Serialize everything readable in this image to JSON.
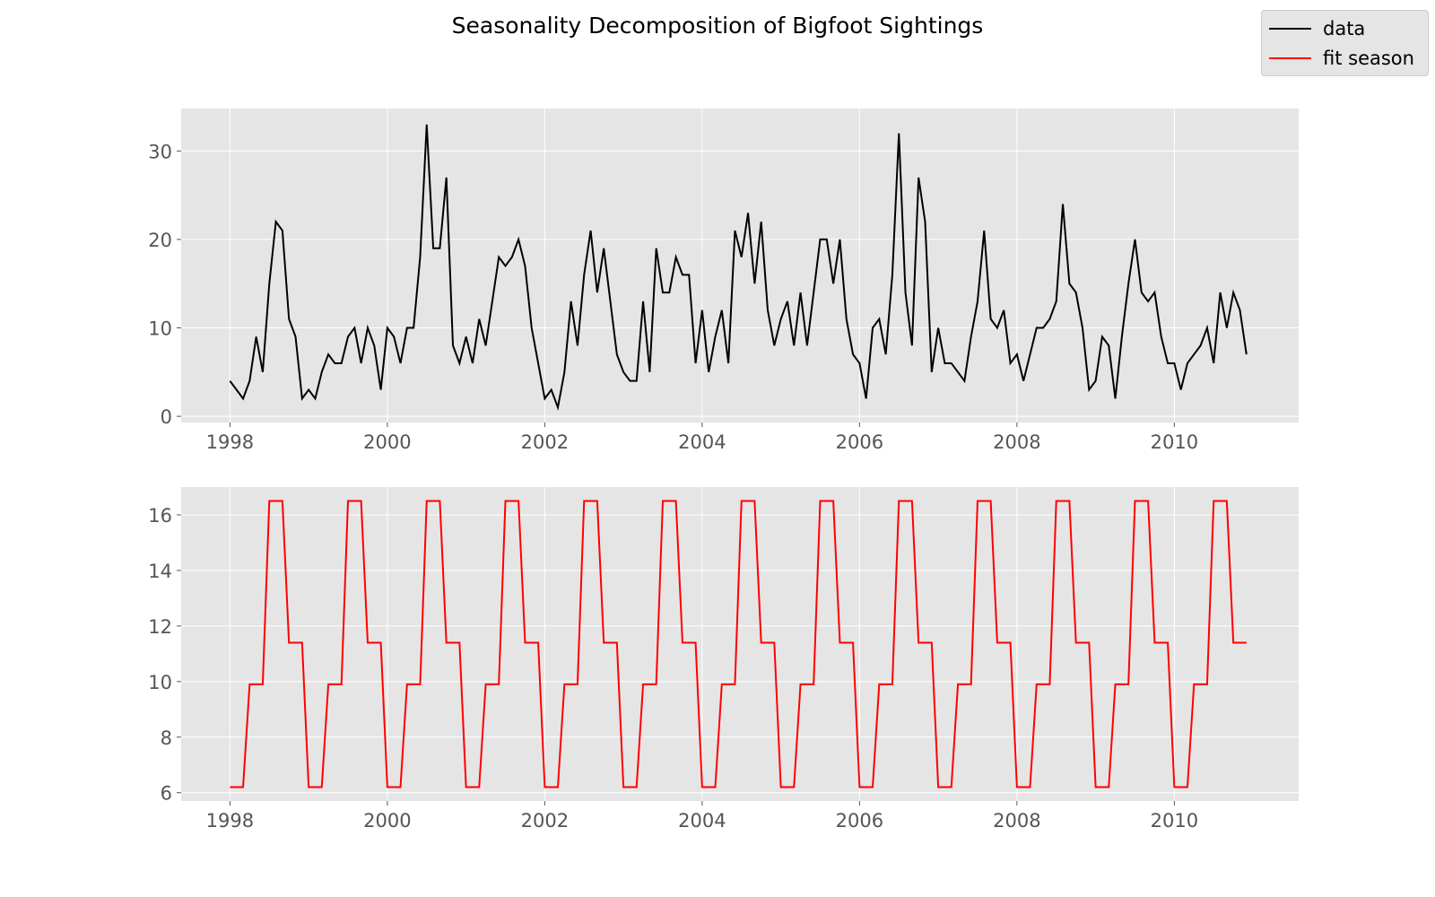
{
  "figure": {
    "title": "Seasonality Decomposition of Bigfoot Sightings"
  },
  "legend": {
    "entries": [
      {
        "label": "data",
        "color": "#000000"
      },
      {
        "label": "fit season",
        "color": "#e41a1c"
      }
    ]
  },
  "colors": {
    "axes_background": "#e5e5e5",
    "grid": "#ffffff",
    "tick_label": "#555555",
    "data_line": "#000000",
    "season_line": "#ff0000"
  },
  "chart_data": [
    {
      "type": "line",
      "title": "",
      "xlabel": "",
      "ylabel": "",
      "x_start": "1998-01",
      "x_step": "1 month",
      "xlim": [
        1997.38,
        2011.58
      ],
      "ylim": [
        -0.7,
        34.8
      ],
      "xticks": [
        1998,
        2000,
        2002,
        2004,
        2006,
        2008,
        2010
      ],
      "yticks": [
        0,
        10,
        20,
        30
      ],
      "grid": true,
      "series": [
        {
          "name": "data",
          "color": "#000000",
          "values": [
            4,
            3,
            2,
            4,
            9,
            5,
            15,
            22,
            21,
            11,
            9,
            2,
            3,
            2,
            5,
            7,
            6,
            6,
            9,
            10,
            6,
            10,
            8,
            3,
            10,
            9,
            6,
            10,
            10,
            18,
            33,
            19,
            19,
            27,
            8,
            6,
            9,
            6,
            11,
            8,
            13,
            18,
            17,
            18,
            20,
            17,
            10,
            6,
            2,
            3,
            1,
            5,
            13,
            8,
            16,
            21,
            14,
            19,
            13,
            7,
            5,
            4,
            4,
            13,
            5,
            19,
            14,
            14,
            18,
            16,
            16,
            6,
            12,
            5,
            9,
            12,
            6,
            21,
            18,
            23,
            15,
            22,
            12,
            8,
            11,
            13,
            8,
            14,
            8,
            14,
            20,
            20,
            15,
            20,
            11,
            7,
            6,
            2,
            10,
            11,
            7,
            16,
            32,
            14,
            8,
            27,
            22,
            5,
            10,
            6,
            6,
            5,
            4,
            9,
            13,
            21,
            11,
            10,
            12,
            6,
            7,
            4,
            7,
            10,
            10,
            11,
            13,
            24,
            15,
            14,
            10,
            3,
            4,
            9,
            8,
            2,
            9,
            15,
            20,
            14,
            13,
            14,
            9,
            6,
            6,
            3,
            6,
            7,
            8,
            10,
            6,
            14,
            10,
            14,
            12,
            7
          ]
        }
      ]
    },
    {
      "type": "line",
      "title": "",
      "xlabel": "",
      "ylabel": "",
      "x_start": "1998-01",
      "x_step": "1 month",
      "xlim": [
        1997.38,
        2011.58
      ],
      "ylim": [
        5.7,
        17.0
      ],
      "xticks": [
        1998,
        2000,
        2002,
        2004,
        2006,
        2008,
        2010
      ],
      "yticks": [
        6,
        8,
        10,
        12,
        14,
        16
      ],
      "grid": true,
      "series": [
        {
          "name": "fit season",
          "color": "#ff0000",
          "season_pattern": [
            6.2,
            6.2,
            6.2,
            9.9,
            9.9,
            9.9,
            16.5,
            16.5,
            16.5,
            11.4,
            11.4,
            11.4
          ],
          "years": 13
        }
      ]
    }
  ]
}
